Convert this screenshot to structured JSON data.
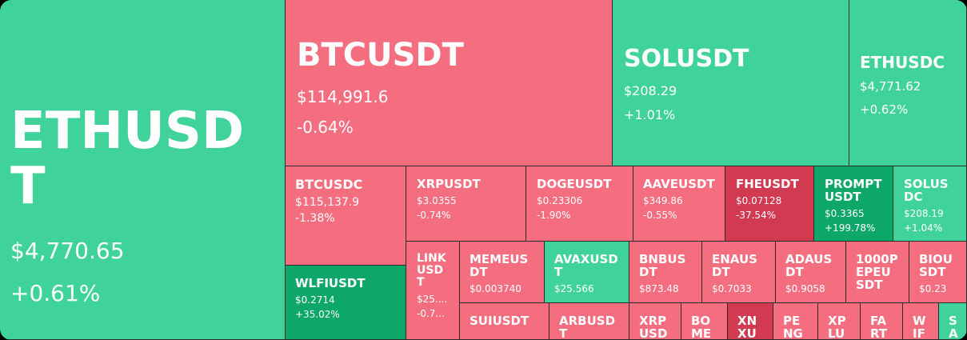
{
  "colors": {
    "up": "#3fd39b",
    "down": "#f56e80",
    "strong_up": "#0ea76a",
    "strong_down": "#d23a52"
  },
  "tiles": [
    {
      "symbol": "ETHUSDT",
      "price": "$4,770.65",
      "change": "+0.61%",
      "dir": "up"
    },
    {
      "symbol": "BTCUSDT",
      "price": "$114,991.6",
      "change": "-0.64%",
      "dir": "down"
    },
    {
      "symbol": "SOLUSDT",
      "price": "$208.29",
      "change": "+1.01%",
      "dir": "up"
    },
    {
      "symbol": "ETHUSDC",
      "price": "$4,771.62",
      "change": "+0.62%",
      "dir": "up"
    },
    {
      "symbol": "BTCUSDC",
      "price": "$115,137.9",
      "change": "-1.38%",
      "dir": "down"
    },
    {
      "symbol": "XRPUSDT",
      "price": "$3.0355",
      "change": "-0.74%",
      "dir": "down"
    },
    {
      "symbol": "DOGEUSDT",
      "price": "$0.23306",
      "change": "-1.90%",
      "dir": "down"
    },
    {
      "symbol": "AAVEUSDT",
      "price": "$349.86",
      "change": "-0.55%",
      "dir": "down"
    },
    {
      "symbol": "FHEUSDT",
      "price": "$0.07128",
      "change": "-37.54%",
      "dir": "strong_down"
    },
    {
      "symbol": "PROMPTUSDT",
      "price": "$0.3365",
      "change": "+199.78%",
      "dir": "strong_up"
    },
    {
      "symbol": "SOLUSDC",
      "price": "$208.19",
      "change": "+1.04%",
      "dir": "up"
    },
    {
      "symbol": "WLFIUSDT",
      "price": "$0.2714",
      "change": "+35.02%",
      "dir": "strong_up"
    },
    {
      "symbol": "LINKUSDT",
      "price": "$25....",
      "change": "-0.7...",
      "dir": "down"
    },
    {
      "symbol": "MEMEUSDT",
      "price": "$0.003740",
      "change": "",
      "dir": "down"
    },
    {
      "symbol": "AVAXUSDT",
      "price": "$25.566",
      "change": "",
      "dir": "up"
    },
    {
      "symbol": "BNBUSDT",
      "price": "$873.48",
      "change": "",
      "dir": "down"
    },
    {
      "symbol": "ENAUSDT",
      "price": "$0.7033",
      "change": "",
      "dir": "down"
    },
    {
      "symbol": "ADAUSDT",
      "price": "$0.9058",
      "change": "",
      "dir": "down"
    },
    {
      "symbol": "1000PEPEUSDT",
      "price": "",
      "change": "",
      "dir": "down"
    },
    {
      "symbol": "BIOUSDT",
      "price": "$0.23",
      "change": "",
      "dir": "down"
    },
    {
      "symbol": "SUIUSDT",
      "price": "",
      "change": "",
      "dir": "down"
    },
    {
      "symbol": "ARBUSDT",
      "price": "",
      "change": "",
      "dir": "down"
    },
    {
      "symbol": "XRPUSDC",
      "price": "",
      "change": "",
      "dir": "down"
    },
    {
      "symbol": "BOME",
      "price": "",
      "change": "",
      "dir": "down"
    },
    {
      "symbol": "XNXU",
      "price": "",
      "change": "",
      "dir": "strong_down"
    },
    {
      "symbol": "PENG",
      "price": "",
      "change": "",
      "dir": "down"
    },
    {
      "symbol": "XPLU",
      "price": "",
      "change": "",
      "dir": "down"
    },
    {
      "symbol": "FART",
      "price": "",
      "change": "",
      "dir": "down"
    },
    {
      "symbol": "WIF",
      "price": "",
      "change": "",
      "dir": "down"
    },
    {
      "symbol": "SA",
      "price": "",
      "change": "",
      "dir": "up"
    }
  ]
}
